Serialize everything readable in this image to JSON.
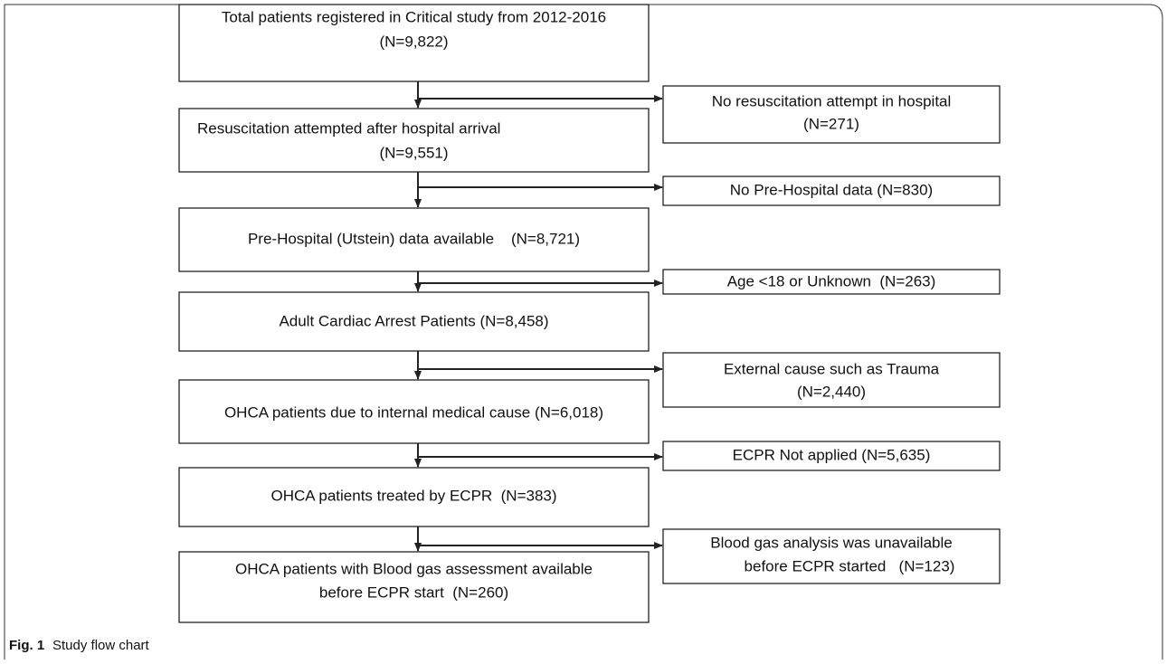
{
  "nodes": [
    {
      "lines": [
        "Total patients registered in Critical study from 2012-2016",
        "(N=9,822)"
      ]
    },
    {
      "lines": [
        "Resuscitation attempted after hospital arrival",
        "(N=9,551)"
      ]
    },
    {
      "lines": [
        "Pre-Hospital (Utstein) data available    (N=8,721)"
      ]
    },
    {
      "lines": [
        "Adult Cardiac Arrest Patients (N=8,458)"
      ]
    },
    {
      "lines": [
        "OHCA patients due to internal medical cause (N=6,018)"
      ]
    },
    {
      "lines": [
        "OHCA patients treated by ECPR  (N=383)"
      ]
    },
    {
      "lines": [
        "OHCA patients with Blood gas assessment available",
        "before ECPR start  (N=260)"
      ]
    }
  ],
  "exclusions": [
    {
      "lines": [
        "No resuscitation attempt in hospital",
        "(N=271)"
      ]
    },
    {
      "lines": [
        "No Pre-Hospital data (N=830)"
      ]
    },
    {
      "lines": [
        "Age <18 or Unknown  (N=263)"
      ]
    },
    {
      "lines": [
        "External cause such as Trauma",
        "(N=2,440)"
      ]
    },
    {
      "lines": [
        "ECPR Not applied (N=5,635)"
      ]
    },
    {
      "lines": [
        "Blood gas analysis was unavailable",
        "before ECPR started   (N=123)"
      ]
    }
  ],
  "caption": {
    "label": "Fig. 1",
    "text": "Study flow chart"
  }
}
